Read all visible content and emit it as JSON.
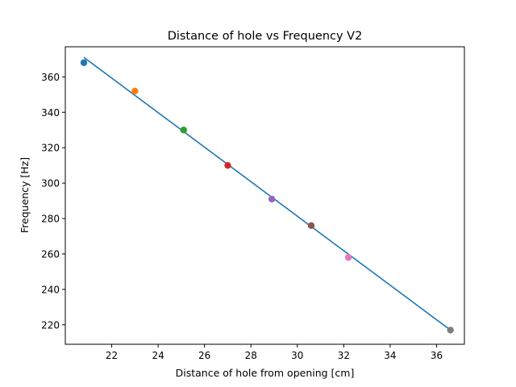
{
  "chart_data": {
    "type": "scatter",
    "title": "Distance of hole vs Frequency V2",
    "xlabel": "Distance of hole from opening [cm]",
    "ylabel": "Frequency [Hz]",
    "xlim": [
      20.0,
      37.2
    ],
    "ylim": [
      209,
      377
    ],
    "xticks": [
      22,
      24,
      26,
      28,
      30,
      32,
      34,
      36
    ],
    "yticks": [
      220,
      240,
      260,
      280,
      300,
      320,
      340,
      360
    ],
    "grid": false,
    "points": [
      {
        "x": 20.8,
        "y": 368,
        "color": "#1f77b4"
      },
      {
        "x": 23.0,
        "y": 352,
        "color": "#ff7f0e"
      },
      {
        "x": 25.1,
        "y": 330,
        "color": "#2ca02c"
      },
      {
        "x": 27.0,
        "y": 310,
        "color": "#d62728"
      },
      {
        "x": 28.9,
        "y": 291,
        "color": "#9467bd"
      },
      {
        "x": 30.6,
        "y": 276,
        "color": "#8c564b"
      },
      {
        "x": 32.2,
        "y": 258,
        "color": "#e377c2"
      },
      {
        "x": 36.6,
        "y": 217,
        "color": "#7f7f7f"
      }
    ],
    "fit_line": {
      "x": [
        20.8,
        36.6
      ],
      "y": [
        371,
        217
      ],
      "color": "#1f77b4"
    }
  }
}
